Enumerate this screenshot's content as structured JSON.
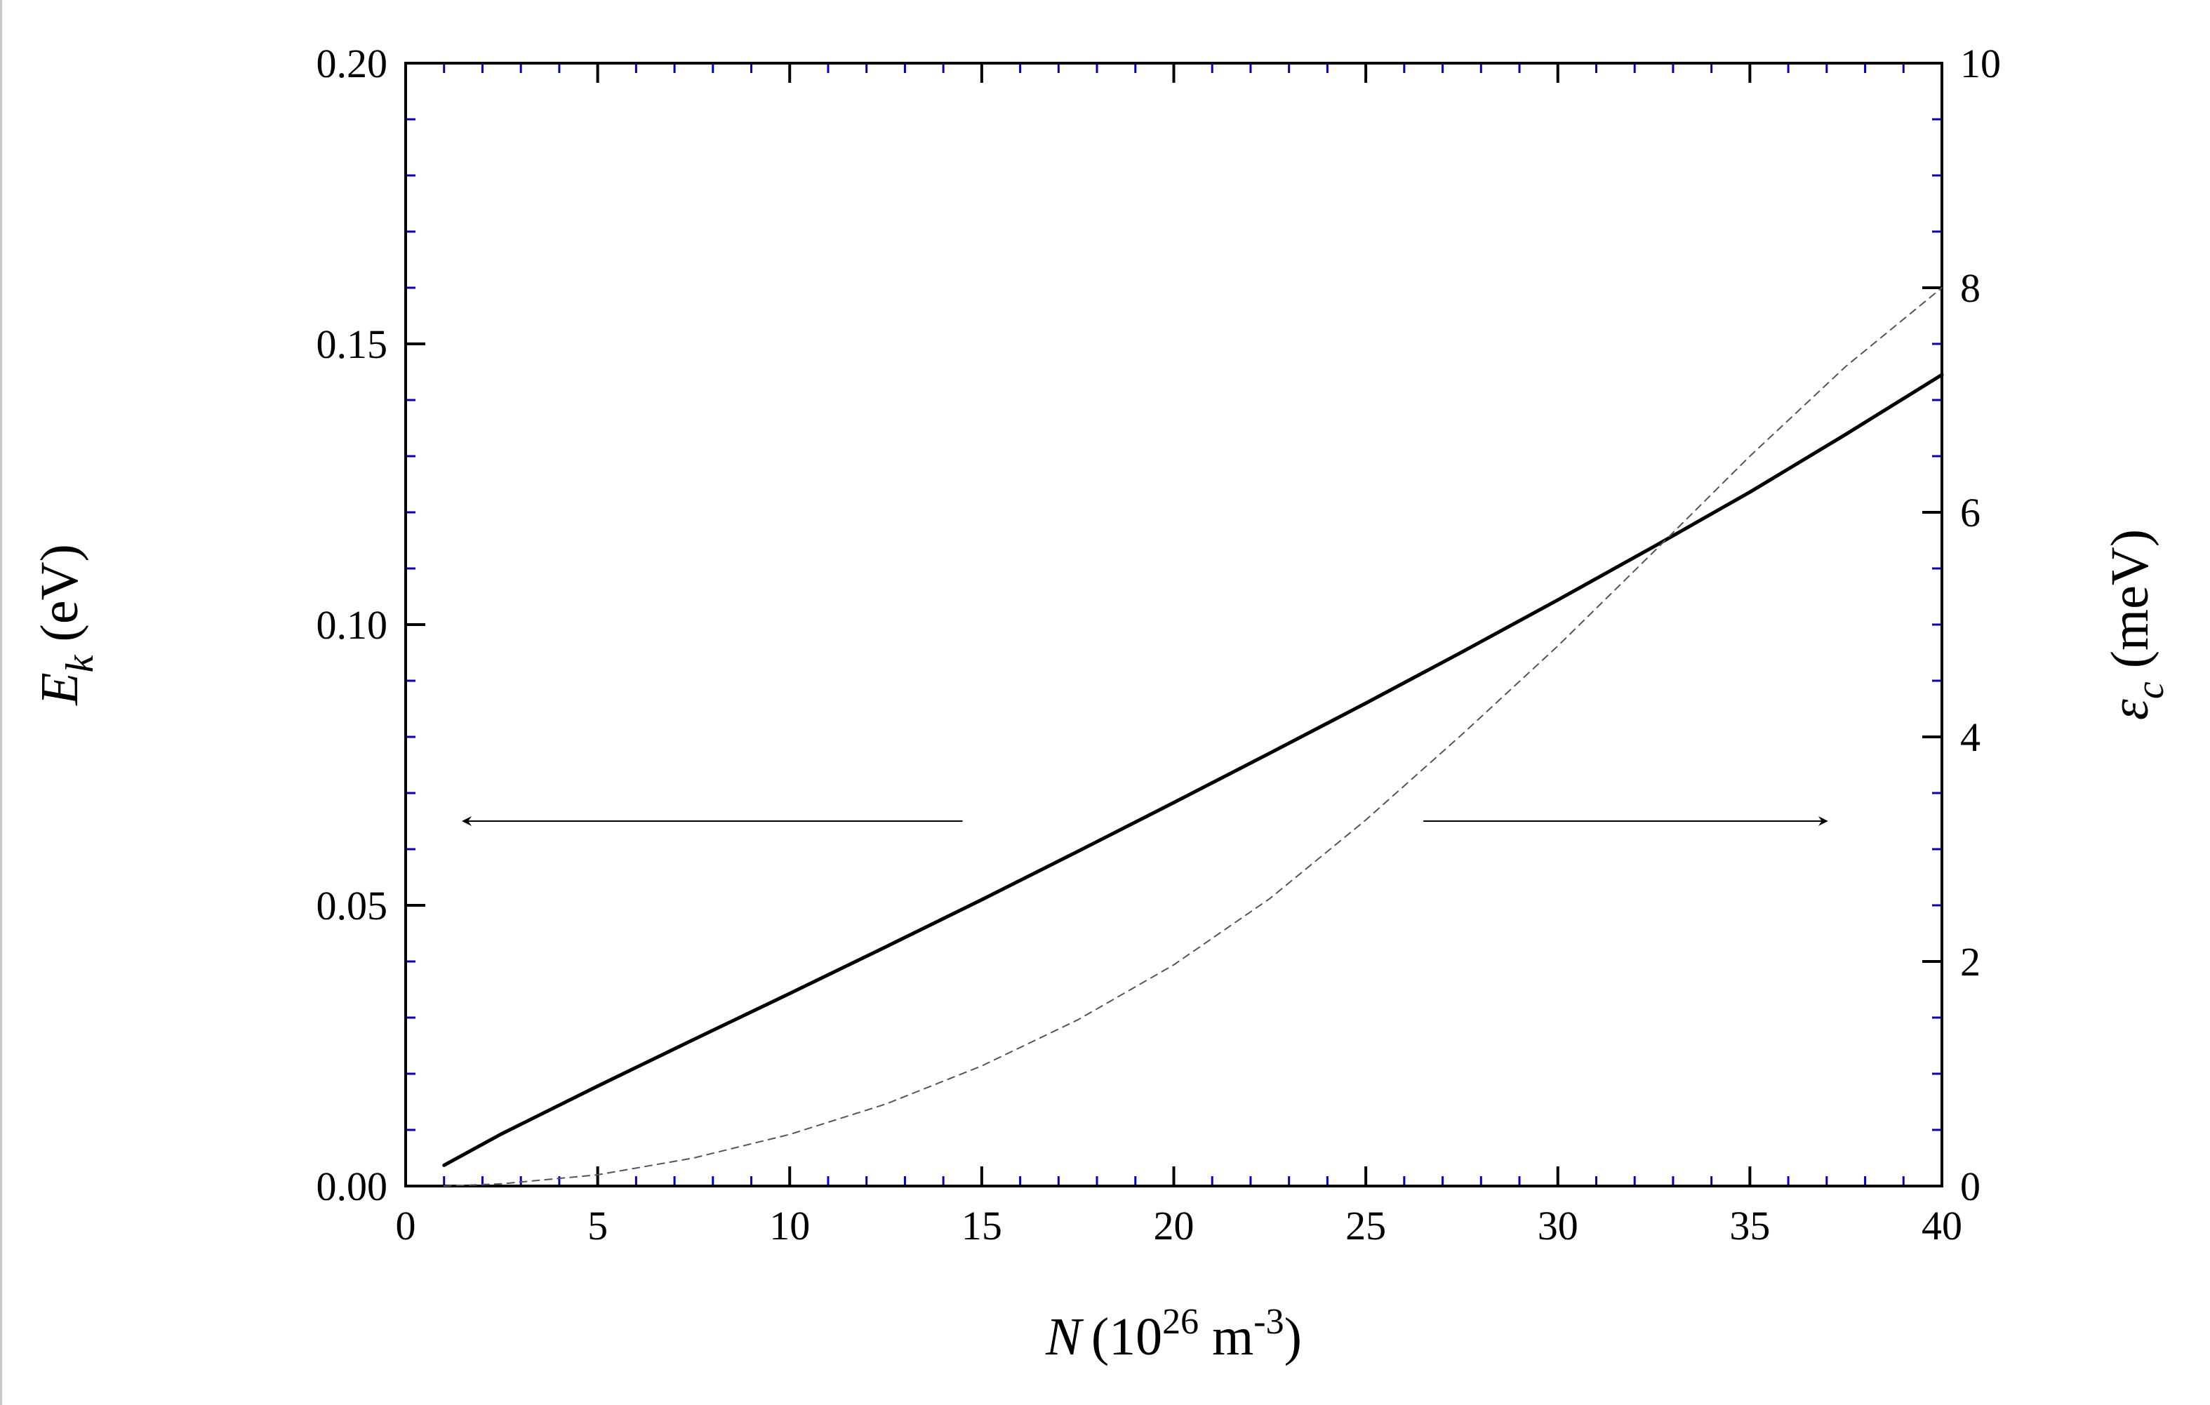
{
  "colors": {
    "frame": "#000000",
    "minor_ticks": "#0000cc",
    "curve": "#000000",
    "dashed_curve": "#555555"
  },
  "chart_data": {
    "type": "line",
    "x": {
      "label_var": "N",
      "label_unit_prefix": "(10",
      "label_unit_exp": "26",
      "label_unit_mid": " m",
      "label_unit_exp2": "-3",
      "label_unit_suffix": ")",
      "range": [
        0,
        40
      ],
      "ticks": [
        0,
        5,
        10,
        15,
        20,
        25,
        30,
        35,
        40
      ],
      "tick_labels": [
        "0",
        "5",
        "10",
        "15",
        "20",
        "25",
        "30",
        "35",
        "40"
      ]
    },
    "y_left": {
      "label_var": "E",
      "label_sub": "k",
      "label_unit": " (eV)",
      "range": [
        0,
        0.2
      ],
      "ticks": [
        0,
        0.05,
        0.1,
        0.15,
        0.2
      ],
      "tick_labels": [
        "0.00",
        "0.05",
        "0.10",
        "0.15",
        "0.20"
      ]
    },
    "y_right": {
      "label_var": "ε",
      "label_sub": "c",
      "label_unit": " (meV)",
      "range": [
        0,
        10
      ],
      "ticks": [
        0,
        2,
        4,
        6,
        8,
        10
      ],
      "tick_labels": [
        "0",
        "2",
        "4",
        "6",
        "8",
        "10"
      ]
    },
    "series": [
      {
        "axis": "left",
        "style": "solid",
        "x": [
          1,
          2.5,
          5,
          7.5,
          10,
          12.5,
          15,
          17.5,
          20,
          22.5,
          25,
          27.5,
          30,
          32.5,
          35,
          37.5,
          40
        ],
        "y": [
          0.0037,
          0.0093,
          0.0178,
          0.0261,
          0.0343,
          0.0426,
          0.051,
          0.0596,
          0.0683,
          0.0771,
          0.086,
          0.0951,
          0.1044,
          0.1139,
          0.1236,
          0.1339,
          0.1445
        ]
      },
      {
        "axis": "right",
        "style": "dashed",
        "x": [
          1,
          2.5,
          5,
          7.5,
          10,
          12.5,
          15,
          17.5,
          20,
          22.5,
          25,
          27.5,
          30,
          32.5,
          35,
          37.5,
          40
        ],
        "y": [
          0.0,
          0.02,
          0.1,
          0.25,
          0.46,
          0.73,
          1.07,
          1.48,
          1.97,
          2.56,
          3.26,
          4.02,
          4.81,
          5.65,
          6.5,
          7.3,
          8.0
        ]
      }
    ],
    "annotations": [
      {
        "type": "arrow",
        "points_to": "left-axis",
        "x_from": 14.5,
        "x_to": 1.5,
        "y": 0.065
      },
      {
        "type": "arrow",
        "points_to": "right-axis",
        "x_from": 26.5,
        "x_to": 37.0,
        "y": 0.065
      }
    ],
    "grid": false
  }
}
